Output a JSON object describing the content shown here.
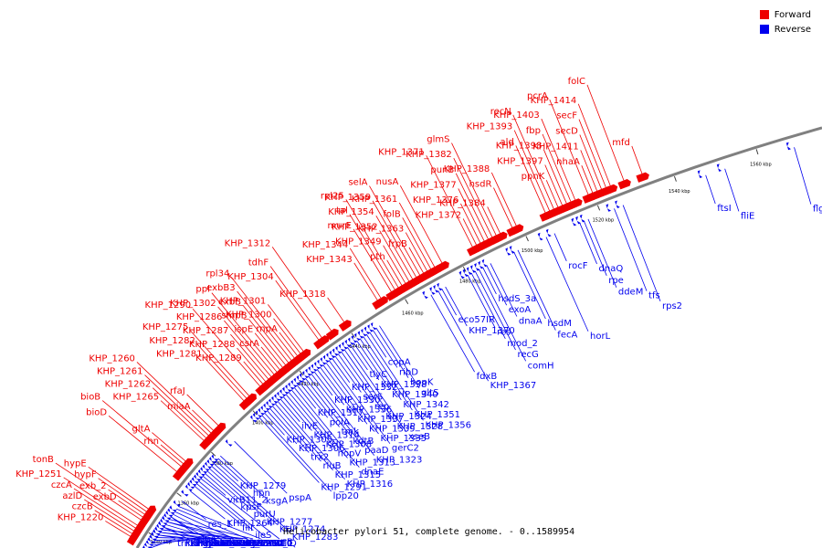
{
  "title": "Helicobacter pylori 51, complete genome. - 0..1589954",
  "legend": [
    {
      "label": "Forward",
      "color": "#ee0000"
    },
    {
      "label": "Reverse",
      "color": "#0000ee"
    }
  ],
  "colors": {
    "forward": "#ee0000",
    "reverse": "#0000ee",
    "backbone": "#808080"
  },
  "ticks": [
    {
      "label": "1340 kbp",
      "t": 0.03
    },
    {
      "label": "1360 kbp",
      "t": 0.105
    },
    {
      "label": "1380 kbp",
      "t": 0.185
    },
    {
      "label": "1400 kbp",
      "t": 0.27
    },
    {
      "label": "1420 kbp",
      "t": 0.355
    },
    {
      "label": "1440 kbp",
      "t": 0.44
    },
    {
      "label": "1460 kbp",
      "t": 0.52
    },
    {
      "label": "1480 kbp",
      "t": 0.6
    },
    {
      "label": "1500 kbp",
      "t": 0.68
    },
    {
      "label": "1520 kbp",
      "t": 0.765
    },
    {
      "label": "1540 kbp",
      "t": 0.85
    },
    {
      "label": "1560 kbp",
      "t": 0.935
    }
  ],
  "forward_labels": [
    {
      "text": "KHP_1251",
      "t": 0.03
    },
    {
      "text": "KHP_1220",
      "t": 0.01
    },
    {
      "text": "czcB",
      "t": 0.015
    },
    {
      "text": "azlD",
      "t": 0.02
    },
    {
      "text": "czcA",
      "t": 0.025
    },
    {
      "text": "tonB",
      "t": 0.04
    },
    {
      "text": "exbD",
      "t": 0.045
    },
    {
      "text": "exb_2",
      "t": 0.05
    },
    {
      "text": "hypF",
      "t": 0.055
    },
    {
      "text": "hypE",
      "t": 0.06
    },
    {
      "text": "bioD",
      "t": 0.13
    },
    {
      "text": "bioB",
      "t": 0.14
    },
    {
      "text": "rhn",
      "t": 0.145
    },
    {
      "text": "gltA",
      "t": 0.15
    },
    {
      "text": "KHP_1265",
      "t": 0.19
    },
    {
      "text": "KHP_1262",
      "t": 0.195
    },
    {
      "text": "KHP_1261",
      "t": 0.2
    },
    {
      "text": "KHP_1260",
      "t": 0.205
    },
    {
      "text": "miaA",
      "t": 0.21
    },
    {
      "text": "rfaJ",
      "t": 0.22
    },
    {
      "text": "KHP_1281",
      "t": 0.27
    },
    {
      "text": "KHP_1282",
      "t": 0.275
    },
    {
      "text": "KHP_1275",
      "t": 0.28
    },
    {
      "text": "KHP_1290",
      "t": 0.3
    },
    {
      "text": "KHP_1289",
      "t": 0.305
    },
    {
      "text": "KHP_1288",
      "t": 0.31
    },
    {
      "text": "KHP_1287",
      "t": 0.315
    },
    {
      "text": "KHP_1286",
      "t": 0.32
    },
    {
      "text": "KHP_1302",
      "t": 0.325
    },
    {
      "text": "ppl",
      "t": 0.33
    },
    {
      "text": "csrA",
      "t": 0.335
    },
    {
      "text": "ispE",
      "t": 0.34
    },
    {
      "text": "smpB",
      "t": 0.345
    },
    {
      "text": "exbB",
      "t": 0.35
    },
    {
      "text": "exbB3",
      "t": 0.355
    },
    {
      "text": "rpl34",
      "t": 0.36
    },
    {
      "text": "rnpA",
      "t": 0.365
    },
    {
      "text": "KHP_1300",
      "t": 0.37
    },
    {
      "text": "KHP_1301",
      "t": 0.375
    },
    {
      "text": "KHP_1304",
      "t": 0.4
    },
    {
      "text": "tdhF",
      "t": 0.405
    },
    {
      "text": "KHP_1312",
      "t": 0.42
    },
    {
      "text": "KHP_1318",
      "t": 0.44
    },
    {
      "text": "KHP_1343",
      "t": 0.49
    },
    {
      "text": "KHP_1344",
      "t": 0.495
    },
    {
      "text": "murE",
      "t": 0.51
    },
    {
      "text": "tal",
      "t": 0.515
    },
    {
      "text": "rpl25",
      "t": 0.52
    },
    {
      "text": "pth",
      "t": 0.525
    },
    {
      "text": "KHP_1349",
      "t": 0.53
    },
    {
      "text": "KHP_1352",
      "t": 0.535
    },
    {
      "text": "KHP_1354",
      "t": 0.54
    },
    {
      "text": "KHP_1359",
      "t": 0.545
    },
    {
      "text": "selA",
      "t": 0.55
    },
    {
      "text": "frpB",
      "t": 0.555
    },
    {
      "text": "KHP_1363",
      "t": 0.56
    },
    {
      "text": "folB",
      "t": 0.565
    },
    {
      "text": "KHP_1361",
      "t": 0.57
    },
    {
      "text": "nusA",
      "t": 0.58
    },
    {
      "text": "KHP_1371",
      "t": 0.62
    },
    {
      "text": "KHP_1372",
      "t": 0.625
    },
    {
      "text": "KHP_1376",
      "t": 0.63
    },
    {
      "text": "KHP_1377",
      "t": 0.635
    },
    {
      "text": "punB",
      "t": 0.64
    },
    {
      "text": "KHP_1382",
      "t": 0.645
    },
    {
      "text": "glmS",
      "t": 0.65
    },
    {
      "text": "KHP_1384",
      "t": 0.655
    },
    {
      "text": "hsdR",
      "t": 0.67
    },
    {
      "text": "KHP_1388",
      "t": 0.675
    },
    {
      "text": "ald",
      "t": 0.71
    },
    {
      "text": "KHP_1393",
      "t": 0.715
    },
    {
      "text": "recN",
      "t": 0.72
    },
    {
      "text": "ppnK",
      "t": 0.725
    },
    {
      "text": "KHP_1397",
      "t": 0.73
    },
    {
      "text": "KHP_1398",
      "t": 0.735
    },
    {
      "text": "fbp",
      "t": 0.74
    },
    {
      "text": "KHP_1403",
      "t": 0.745
    },
    {
      "text": "pcrA",
      "t": 0.76
    },
    {
      "text": "nhaA",
      "t": 0.765
    },
    {
      "text": "KHP_1411",
      "t": 0.77
    },
    {
      "text": "secD",
      "t": 0.775
    },
    {
      "text": "secF",
      "t": 0.78
    },
    {
      "text": "KHP_1414",
      "t": 0.785
    },
    {
      "text": "folC",
      "t": 0.8
    },
    {
      "text": "mfd",
      "t": 0.82
    }
  ],
  "reverse_labels": [
    {
      "text": "KHP_1249",
      "t": 0.03
    },
    {
      "text": "KHP_1246",
      "t": 0.035
    },
    {
      "text": "KHP_1245",
      "t": 0.04
    },
    {
      "text": "KHP_1244",
      "t": 0.045
    },
    {
      "text": "KHP_1243",
      "t": 0.05
    },
    {
      "text": "comB1",
      "t": 0.055
    },
    {
      "text": "comB2",
      "t": 0.06
    },
    {
      "text": "comB10",
      "t": 0.065
    },
    {
      "text": "clpA",
      "t": 0.07
    },
    {
      "text": "trmU",
      "t": 0.01
    },
    {
      "text": "dnaJ",
      "t": 0.015
    },
    {
      "text": "nadD",
      "t": 0.02
    },
    {
      "text": "azlC",
      "t": 0.025
    },
    {
      "text": "fumC",
      "t": 0.03
    },
    {
      "text": "rnhB",
      "t": 0.035
    },
    {
      "text": "nikR",
      "t": 0.04
    },
    {
      "text": "fcl",
      "t": 0.045
    },
    {
      "text": "gmd",
      "t": 0.05
    },
    {
      "text": "algA",
      "t": 0.06
    },
    {
      "text": "panD",
      "t": 0.07
    },
    {
      "text": "KHP_1253",
      "t": 0.075
    },
    {
      "text": "KHP_1250",
      "t": 0.08
    },
    {
      "text": "icd",
      "t": 0.085
    },
    {
      "text": "mod_1",
      "t": 0.09
    },
    {
      "text": "res_1",
      "t": 0.1
    },
    {
      "text": "KHP_1264",
      "t": 0.12
    },
    {
      "text": "fliI",
      "t": 0.13
    },
    {
      "text": "ileS",
      "t": 0.135
    },
    {
      "text": "murB",
      "t": 0.14
    },
    {
      "text": "fliQ",
      "t": 0.145
    },
    {
      "text": "virB11_2",
      "t": 0.15
    },
    {
      "text": "kpsF",
      "t": 0.155
    },
    {
      "text": "purU",
      "t": 0.16
    },
    {
      "text": "KHP_1277",
      "t": 0.165
    },
    {
      "text": "KHP_1274",
      "t": 0.17
    },
    {
      "text": "KHP_1283",
      "t": 0.175
    },
    {
      "text": "KHP_1279",
      "t": 0.18
    },
    {
      "text": "hpn",
      "t": 0.185
    },
    {
      "text": "ksgA",
      "t": 0.19
    },
    {
      "text": "pspA",
      "t": 0.22
    },
    {
      "text": "KHP_1291",
      "t": 0.27
    },
    {
      "text": "lpp20",
      "t": 0.275
    },
    {
      "text": "KHP_1305",
      "t": 0.28
    },
    {
      "text": "KHP_1306",
      "t": 0.285
    },
    {
      "text": "trx2",
      "t": 0.29
    },
    {
      "text": "rluB",
      "t": 0.295
    },
    {
      "text": "KHP_1315",
      "t": 0.3
    },
    {
      "text": "KHP_1316",
      "t": 0.305
    },
    {
      "text": "ilvE",
      "t": 0.31
    },
    {
      "text": "KHP_1314",
      "t": 0.315
    },
    {
      "text": "KHP_1308",
      "t": 0.32
    },
    {
      "text": "hopV",
      "t": 0.325
    },
    {
      "text": "KHP_1313",
      "t": 0.33
    },
    {
      "text": "dnaE",
      "t": 0.335
    },
    {
      "text": "KHP_1317",
      "t": 0.34
    },
    {
      "text": "polA",
      "t": 0.345
    },
    {
      "text": "tmk",
      "t": 0.35
    },
    {
      "text": "kdtB",
      "t": 0.355
    },
    {
      "text": "paaD",
      "t": 0.36
    },
    {
      "text": "KHP_1323",
      "t": 0.365
    },
    {
      "text": "KHP_1330",
      "t": 0.37
    },
    {
      "text": "KHP_1336",
      "t": 0.375
    },
    {
      "text": "KHP_1337",
      "t": 0.38
    },
    {
      "text": "KHP_1339",
      "t": 0.385
    },
    {
      "text": "KHP_1335",
      "t": 0.39
    },
    {
      "text": "gerC2",
      "t": 0.395
    },
    {
      "text": "KHP_1332",
      "t": 0.4
    },
    {
      "text": "serS",
      "t": 0.405
    },
    {
      "text": "rep",
      "t": 0.41
    },
    {
      "text": "KHP_1324",
      "t": 0.415
    },
    {
      "text": "KHP_1328",
      "t": 0.42
    },
    {
      "text": "xseB",
      "t": 0.425
    },
    {
      "text": "tlyC",
      "t": 0.43
    },
    {
      "text": "KHP_1338",
      "t": 0.435
    },
    {
      "text": "KHP_1340",
      "t": 0.44
    },
    {
      "text": "KHP_1342",
      "t": 0.445
    },
    {
      "text": "KHP_1351",
      "t": 0.45
    },
    {
      "text": "KHP_1356",
      "t": 0.455
    },
    {
      "text": "copA",
      "t": 0.46
    },
    {
      "text": "ribD",
      "t": 0.465
    },
    {
      "text": "hopK",
      "t": 0.47
    },
    {
      "text": "gltS",
      "t": 0.475
    },
    {
      "text": "fdxB",
      "t": 0.55
    },
    {
      "text": "KHP_1367",
      "t": 0.56
    },
    {
      "text": "eco57IR",
      "t": 0.565
    },
    {
      "text": "KHP_1370",
      "t": 0.57
    },
    {
      "text": "res",
      "t": 0.6
    },
    {
      "text": "mod_2",
      "t": 0.605
    },
    {
      "text": "recG",
      "t": 0.61
    },
    {
      "text": "comH",
      "t": 0.615
    },
    {
      "text": "hsdS_3a",
      "t": 0.62
    },
    {
      "text": "exoA",
      "t": 0.625
    },
    {
      "text": "dnaA",
      "t": 0.63
    },
    {
      "text": "hsdM",
      "t": 0.66
    },
    {
      "text": "fecA",
      "t": 0.665
    },
    {
      "text": "horL",
      "t": 0.7
    },
    {
      "text": "rocF",
      "t": 0.71
    },
    {
      "text": "dnaQ",
      "t": 0.74
    },
    {
      "text": "rpe",
      "t": 0.745
    },
    {
      "text": "ddeM",
      "t": 0.75
    },
    {
      "text": "tfs",
      "t": 0.78
    },
    {
      "text": "rps2",
      "t": 0.79
    },
    {
      "text": "ftsI",
      "t": 0.88
    },
    {
      "text": "fliE",
      "t": 0.9
    },
    {
      "text": "flgC",
      "t": 0.97
    }
  ]
}
